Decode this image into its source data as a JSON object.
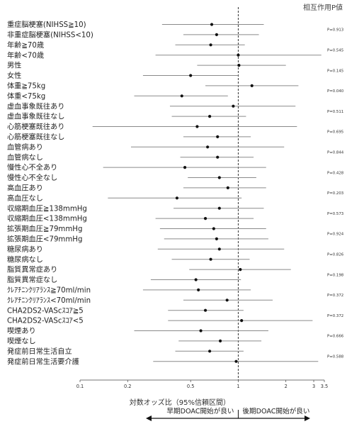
{
  "header": {
    "pvalue_title": "相互作用P値"
  },
  "chart_data": {
    "type": "forest",
    "xlabel": "対数オッズ比（95%信頼区間）",
    "x_scale": "log",
    "xlim": [
      0.1,
      3.5
    ],
    "x_ticks": [
      0.1,
      0.2,
      0.5,
      1,
      2,
      3,
      3.5
    ],
    "x_tick_labels": [
      "0.1",
      "0.2",
      "0.5",
      "1",
      "2",
      "3",
      "3.5"
    ],
    "reference_line": 1,
    "direction_left": "早期DOAC開始が良い",
    "direction_right": "後期DOAC開始が良い",
    "rows": [
      {
        "label": "重症脳梗塞(NIHSS≧10)",
        "or": 0.68,
        "lo": 0.33,
        "hi": 1.45
      },
      {
        "label": "非重症脳梗塞(NIHSS<10)",
        "or": 0.73,
        "lo": 0.45,
        "hi": 1.35
      },
      {
        "label": "年齢≧70歳",
        "or": 0.67,
        "lo": 0.4,
        "hi": 1.1
      },
      {
        "label": "年齢<70歳",
        "or": 1.0,
        "lo": 0.3,
        "hi": 3.35
      },
      {
        "label": "男性",
        "or": 1.01,
        "lo": 0.55,
        "hi": 2.0
      },
      {
        "label": "女性",
        "or": 0.5,
        "lo": 0.25,
        "hi": 1.0
      },
      {
        "label": "体重≧75kg",
        "or": 1.22,
        "lo": 0.62,
        "hi": 2.4
      },
      {
        "label": "体重<75kg",
        "or": 0.44,
        "lo": 0.22,
        "hi": 0.86
      },
      {
        "label": "虚血事象既往あり",
        "or": 0.93,
        "lo": 0.37,
        "hi": 2.3
      },
      {
        "label": "虚血事象既往なし",
        "or": 0.66,
        "lo": 0.38,
        "hi": 1.12
      },
      {
        "label": "心筋梗塞既往あり",
        "or": 0.55,
        "lo": 0.12,
        "hi": 2.35
      },
      {
        "label": "心筋梗塞既往なし",
        "or": 0.74,
        "lo": 0.45,
        "hi": 1.2
      },
      {
        "label": "血管病あり",
        "or": 0.64,
        "lo": 0.21,
        "hi": 1.95
      },
      {
        "label": "血管病なし",
        "or": 0.74,
        "lo": 0.43,
        "hi": 1.25
      },
      {
        "label": "慢性心不全あり",
        "or": 0.46,
        "lo": 0.14,
        "hi": 1.5
      },
      {
        "label": "慢性心不全なし",
        "or": 0.76,
        "lo": 0.48,
        "hi": 1.3
      },
      {
        "label": "高血圧あり",
        "or": 0.86,
        "lo": 0.45,
        "hi": 1.5
      },
      {
        "label": "高血圧なし",
        "or": 0.41,
        "lo": 0.15,
        "hi": 1.05
      },
      {
        "label": "収縮期血圧≧138mmHg",
        "or": 0.76,
        "lo": 0.39,
        "hi": 1.45
      },
      {
        "label": "収縮期血圧<138mmHg",
        "or": 0.62,
        "lo": 0.3,
        "hi": 1.25
      },
      {
        "label": "拡張期血圧≧79mmHg",
        "or": 0.7,
        "lo": 0.32,
        "hi": 1.5
      },
      {
        "label": "拡張期血圧<79mmHg",
        "or": 0.73,
        "lo": 0.34,
        "hi": 1.55
      },
      {
        "label": "糖尿病あり",
        "or": 0.76,
        "lo": 0.31,
        "hi": 1.95
      },
      {
        "label": "糖尿病なし",
        "or": 0.67,
        "lo": 0.38,
        "hi": 1.18
      },
      {
        "label": "脂質異常症あり",
        "or": 1.03,
        "lo": 0.49,
        "hi": 2.15
      },
      {
        "label": "脂質異常症なし",
        "or": 0.54,
        "lo": 0.28,
        "hi": 1.04
      },
      {
        "label": "ｸﾚｱﾁﾆﾝｸﾘｱﾗﾝｽ≧70ml/min",
        "or": 0.56,
        "lo": 0.25,
        "hi": 1.2
      },
      {
        "label": "ｸﾚｱﾁﾆﾝｸﾘｱﾗﾝｽ<70ml/min",
        "or": 0.85,
        "lo": 0.45,
        "hi": 1.65
      },
      {
        "label": "CHA2DS2-VAScｽｺｱ≧5",
        "or": 0.62,
        "lo": 0.36,
        "hi": 1.08
      },
      {
        "label": "CHA2DS2-VAScｽｺｱ<5",
        "or": 1.05,
        "lo": 0.36,
        "hi": 2.95
      },
      {
        "label": "喫煙あり",
        "or": 0.58,
        "lo": 0.22,
        "hi": 1.55
      },
      {
        "label": "喫煙なし",
        "or": 0.77,
        "lo": 0.42,
        "hi": 1.4
      },
      {
        "label": "発症前日常生活自立",
        "or": 0.66,
        "lo": 0.4,
        "hi": 1.08
      },
      {
        "label": "発症前日常生活要介護",
        "or": 0.97,
        "lo": 0.29,
        "hi": 3.2
      }
    ],
    "interaction_p": [
      {
        "value": "P=0.913"
      },
      {
        "value": "P=0.545"
      },
      {
        "value": "P=0.145"
      },
      {
        "value": "P=0.040"
      },
      {
        "value": "P=0.511"
      },
      {
        "value": "P=0.695"
      },
      {
        "value": "P=0.844"
      },
      {
        "value": "P=0.428"
      },
      {
        "value": "P=0.203"
      },
      {
        "value": "P=0.573"
      },
      {
        "value": "P=0.924"
      },
      {
        "value": "P=0.826"
      },
      {
        "value": "P=0.198"
      },
      {
        "value": "P=0.372"
      },
      {
        "value": "P=0.372"
      },
      {
        "value": "P=0.666"
      },
      {
        "value": "P=0.588"
      }
    ]
  }
}
